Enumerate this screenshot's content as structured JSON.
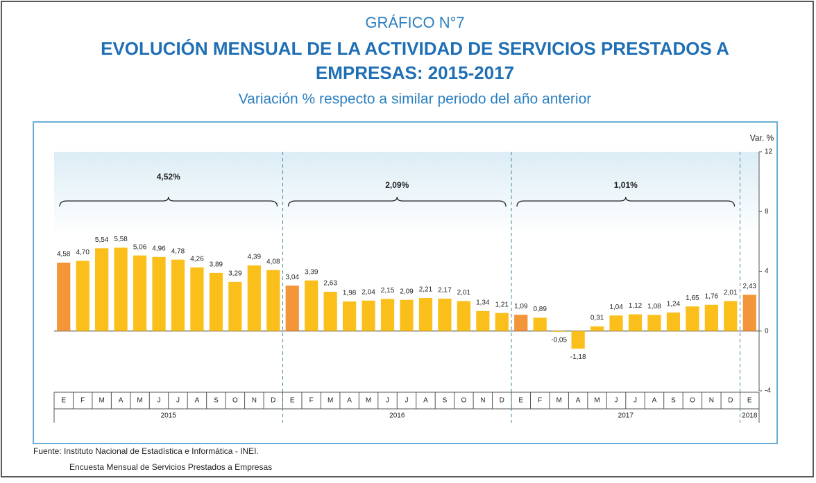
{
  "chart_data": {
    "type": "bar",
    "kicker": "GRÁFICO N°7",
    "title": [
      "EVOLUCIÓN MENSUAL DE LA ACTIVIDAD DE SERVICIOS PRESTADOS A",
      "EMPRESAS: 2015-2017"
    ],
    "subtitle": "Variación % respecto a similar periodo del año anterior",
    "y_label": "Var. %",
    "categories": [
      "E",
      "F",
      "M",
      "A",
      "M",
      "J",
      "J",
      "A",
      "S",
      "O",
      "N",
      "D",
      "E",
      "F",
      "M",
      "A",
      "M",
      "J",
      "J",
      "A",
      "S",
      "O",
      "N",
      "D",
      "E",
      "F",
      "M",
      "A",
      "M",
      "J",
      "J",
      "A",
      "S",
      "O",
      "N",
      "D",
      "E"
    ],
    "years": [
      "2015",
      "2015",
      "2015",
      "2015",
      "2015",
      "2015",
      "2015",
      "2015",
      "2015",
      "2015",
      "2015",
      "2015",
      "2016",
      "2016",
      "2016",
      "2016",
      "2016",
      "2016",
      "2016",
      "2016",
      "2016",
      "2016",
      "2016",
      "2016",
      "2017",
      "2017",
      "2017",
      "2017",
      "2017",
      "2017",
      "2017",
      "2017",
      "2017",
      "2017",
      "2017",
      "2017",
      "2018"
    ],
    "values": [
      4.58,
      4.7,
      5.54,
      5.58,
      5.06,
      4.96,
      4.78,
      4.26,
      3.89,
      3.29,
      4.39,
      4.08,
      3.04,
      3.39,
      2.63,
      1.98,
      2.04,
      2.15,
      2.09,
      2.21,
      2.17,
      2.01,
      1.34,
      1.21,
      1.09,
      0.89,
      -0.05,
      -1.18,
      0.31,
      1.04,
      1.12,
      1.08,
      1.24,
      1.65,
      1.76,
      2.01,
      2.43
    ],
    "value_labels": [
      "4,58",
      "4,70",
      "5,54",
      "5,58",
      "5,06",
      "4,96",
      "4,78",
      "4,26",
      "3,89",
      "3,29",
      "4,39",
      "4,08",
      "3,04",
      "3,39",
      "2,63",
      "1,98",
      "2,04",
      "2,15",
      "2,09",
      "2,21",
      "2,17",
      "2,01",
      "1,34",
      "1,21",
      "1,09",
      "0,89",
      "-0,05",
      "-1,18",
      "0,31",
      "1,04",
      "1,12",
      "1,08",
      "1,24",
      "1,65",
      "1,76",
      "2,01",
      "2,43"
    ],
    "colors": [
      "#f39539",
      "#fbbf1b",
      "#fbbf1b",
      "#fbbf1b",
      "#fbbf1b",
      "#fbbf1b",
      "#fbbf1b",
      "#fbbf1b",
      "#fbbf1b",
      "#fbbf1b",
      "#fbbf1b",
      "#fbbf1b",
      "#f39539",
      "#fbbf1b",
      "#fbbf1b",
      "#fbbf1b",
      "#fbbf1b",
      "#fbbf1b",
      "#fbbf1b",
      "#fbbf1b",
      "#fbbf1b",
      "#fbbf1b",
      "#fbbf1b",
      "#fbbf1b",
      "#f39539",
      "#fbbf1b",
      "#fbbf1b",
      "#fbbf1b",
      "#fbbf1b",
      "#fbbf1b",
      "#fbbf1b",
      "#fbbf1b",
      "#fbbf1b",
      "#fbbf1b",
      "#fbbf1b",
      "#fbbf1b",
      "#f39539"
    ],
    "annotations": [
      "4,52%",
      "2,09%",
      "1,01%"
    ],
    "ylim": [
      -4,
      12
    ],
    "yticks": [
      -4,
      0,
      4,
      8,
      12
    ],
    "source": [
      "Fuente: Instituto Nacional de Estadística e Informática - INEI.",
      "Encuesta Mensual de Servicios Prestados a Empresas"
    ]
  }
}
